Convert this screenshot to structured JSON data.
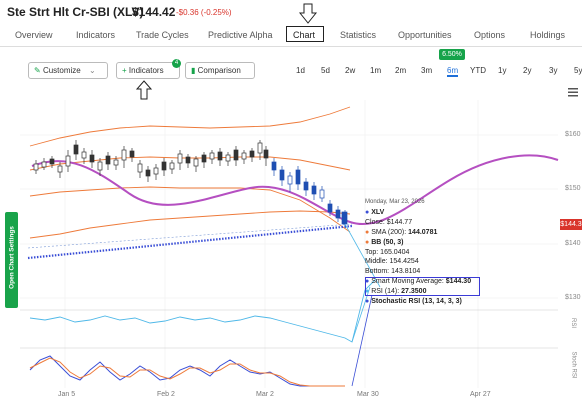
{
  "header": {
    "title": "Ste Strt Hlt Cr-SBI (XLV)",
    "price": "$144.42",
    "change": "-$0.36 (-0.25%)"
  },
  "tabs": [
    "Overview",
    "Indicators",
    "Trade Cycles",
    "Predictive Alpha",
    "Chart",
    "Statistics",
    "Opportunities",
    "Options",
    "Holdings"
  ],
  "toolbar": {
    "customize": "Customize",
    "indicators": "Indicators",
    "indicators_count": "4",
    "comparison": "Comparison",
    "ranges": [
      "1d",
      "5d",
      "2w",
      "1m",
      "2m",
      "3m",
      "6m",
      "YTD",
      "1y",
      "2y",
      "3y",
      "5y"
    ],
    "active_range": "6m",
    "range_change": "6.50%"
  },
  "side_button": "Open Chart Settings",
  "price_tag": "$144.3",
  "y_axis": [
    "$160",
    "$150",
    "$140",
    "$130"
  ],
  "panel_labels": [
    "RSI",
    "Stoch RSI"
  ],
  "x_axis": [
    "Jan 5",
    "Feb 2",
    "Mar 2",
    "Mar 30",
    "Apr 27"
  ],
  "tooltip": {
    "date": "Monday, Mar 23, 2026",
    "symbol": "XLV",
    "close": "Close: $144.77",
    "sma_label": "SMA (200):",
    "sma_value": "144.0781",
    "bb": "BB (50, 3)",
    "top": "Top: 165.0404",
    "middle": "Middle: 154.4254",
    "bottom": "Bottom: 143.8104",
    "sma_avg_label": "Smart Moving Average:",
    "sma_avg_value": "$144.30",
    "rsi_label": "RSI (14):",
    "rsi_value": "27.3500",
    "stoch": "Stochastic RSI (13, 14, 3, 3)"
  },
  "colors": {
    "green": "#16a34a",
    "red": "#d9342b",
    "blue": "#1e6fd9",
    "purple": "#b54fc1",
    "orange": "#ee7a3a"
  }
}
